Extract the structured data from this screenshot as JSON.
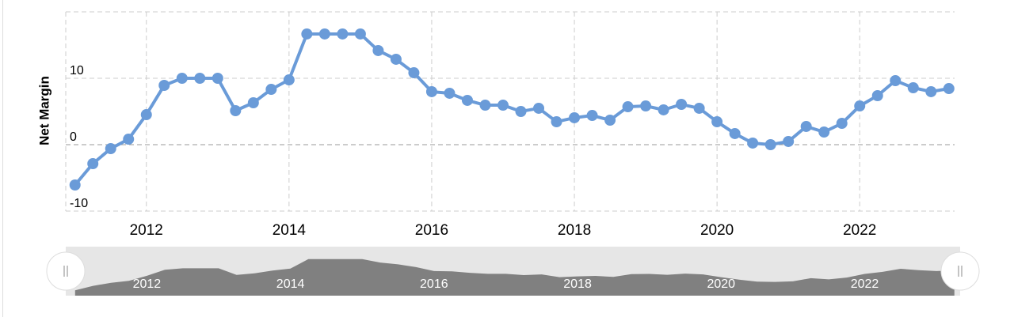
{
  "chart_data": {
    "type": "line",
    "y_axis_label": "Net Margin",
    "x": [
      2011.0,
      2011.25,
      2011.5,
      2011.75,
      2012.0,
      2012.25,
      2012.5,
      2012.75,
      2013.0,
      2013.25,
      2013.5,
      2013.75,
      2014.0,
      2014.25,
      2014.5,
      2014.75,
      2015.0,
      2015.25,
      2015.5,
      2015.75,
      2016.0,
      2016.25,
      2016.5,
      2016.75,
      2017.0,
      2017.25,
      2017.5,
      2017.75,
      2018.0,
      2018.25,
      2018.5,
      2018.75,
      2019.0,
      2019.25,
      2019.5,
      2019.75,
      2020.0,
      2020.25,
      2020.5,
      2020.75,
      2021.0,
      2021.25,
      2021.5,
      2021.75,
      2022.0,
      2022.25,
      2022.5,
      2022.75,
      2023.0,
      2023.25
    ],
    "series": [
      {
        "name": "Net Margin",
        "color": "#6a9bd8",
        "values": [
          -6.07,
          -2.86,
          -0.6,
          0.83,
          4.52,
          8.93,
          10,
          10,
          10,
          5.12,
          6.31,
          8.33,
          9.76,
          16.67,
          16.67,
          16.67,
          16.67,
          14.17,
          12.86,
          10.83,
          7.98,
          7.74,
          6.67,
          5.95,
          5.95,
          5,
          5.48,
          3.45,
          4.05,
          4.4,
          3.69,
          5.71,
          5.83,
          5.24,
          6.07,
          5.48,
          3.45,
          1.67,
          0.24,
          0,
          0.48,
          2.74,
          1.9,
          3.21,
          5.83,
          7.38,
          9.64,
          8.57,
          7.98,
          8.45
        ]
      }
    ],
    "xlim": [
      2010.87,
      2023.33
    ],
    "xticks": [
      2012,
      2014,
      2016,
      2018,
      2020,
      2022
    ],
    "ylim": [
      -10,
      20
    ],
    "yticks": [
      -10,
      0,
      10
    ],
    "grid": true,
    "navigator": true
  }
}
